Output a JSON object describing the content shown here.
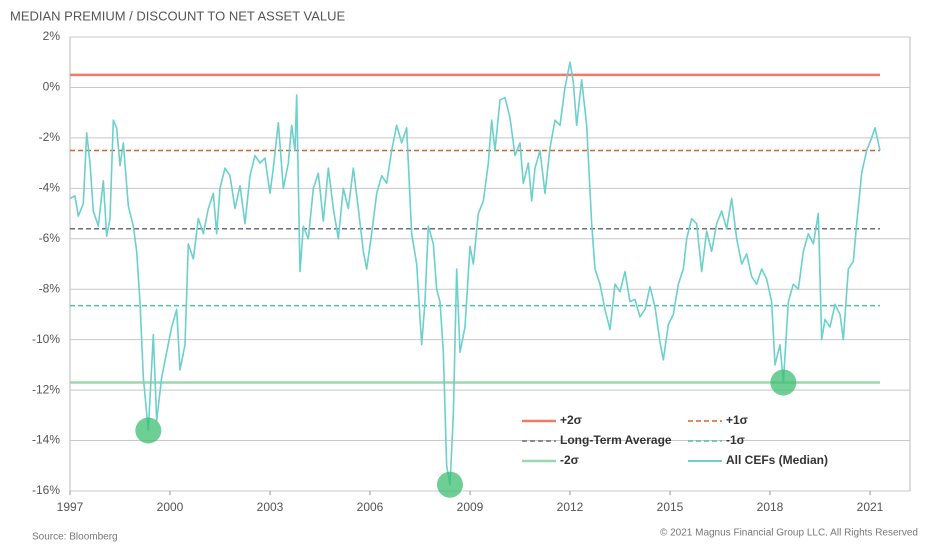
{
  "chart_data": {
    "type": "line",
    "title": "MEDIAN PREMIUM / DISCOUNT TO NET ASSET VALUE",
    "source": "Source: Bloomberg",
    "copyright": "© 2021 Magnus Financial Group LLC. All Rights Reserved",
    "xlim": [
      1997,
      2022.2
    ],
    "xticks": [
      1997,
      2000,
      2003,
      2006,
      2009,
      2012,
      2015,
      2018,
      2021
    ],
    "ylim": [
      -16,
      2
    ],
    "yticks": [
      {
        "value": 2,
        "label": "2%"
      },
      {
        "value": 0,
        "label": "0%"
      },
      {
        "value": -2,
        "label": "-2%"
      },
      {
        "value": -4,
        "label": "-4%"
      },
      {
        "value": -6,
        "label": "-6%"
      },
      {
        "value": -8,
        "label": "-8%"
      },
      {
        "value": -10,
        "label": "-10%"
      },
      {
        "value": -12,
        "label": "-12%"
      },
      {
        "value": -14,
        "label": "-14%"
      },
      {
        "value": -16,
        "label": "-16%"
      }
    ],
    "grid": true,
    "x": [
      1997.0,
      1997.15,
      1997.25,
      1997.4,
      1997.5,
      1997.6,
      1997.7,
      1997.85,
      1998.0,
      1998.1,
      1998.2,
      1998.3,
      1998.4,
      1998.5,
      1998.6,
      1998.75,
      1998.9,
      1999.0,
      1999.1,
      1999.2,
      1999.35,
      1999.5,
      1999.6,
      1999.75,
      1999.9,
      2000.05,
      2000.2,
      2000.3,
      2000.45,
      2000.55,
      2000.7,
      2000.85,
      2001.0,
      2001.15,
      2001.3,
      2001.4,
      2001.5,
      2001.65,
      2001.8,
      2001.95,
      2002.1,
      2002.25,
      2002.4,
      2002.55,
      2002.7,
      2002.85,
      2003.0,
      2003.1,
      2003.25,
      2003.4,
      2003.55,
      2003.65,
      2003.75,
      2003.8,
      2003.9,
      2004.0,
      2004.15,
      2004.3,
      2004.45,
      2004.6,
      2004.75,
      2004.9,
      2005.05,
      2005.2,
      2005.35,
      2005.5,
      2005.65,
      2005.8,
      2005.9,
      2006.05,
      2006.2,
      2006.35,
      2006.5,
      2006.65,
      2006.8,
      2006.95,
      2007.1,
      2007.25,
      2007.4,
      2007.55,
      2007.65,
      2007.75,
      2007.9,
      2008.0,
      2008.1,
      2008.2,
      2008.3,
      2008.4,
      2008.5,
      2008.6,
      2008.7,
      2008.85,
      2009.0,
      2009.1,
      2009.25,
      2009.4,
      2009.55,
      2009.65,
      2009.75,
      2009.9,
      2010.05,
      2010.2,
      2010.35,
      2010.5,
      2010.6,
      2010.75,
      2010.85,
      2010.95,
      2011.1,
      2011.25,
      2011.4,
      2011.55,
      2011.7,
      2011.85,
      2012.0,
      2012.1,
      2012.2,
      2012.35,
      2012.5,
      2012.65,
      2012.75,
      2012.9,
      2013.05,
      2013.2,
      2013.35,
      2013.5,
      2013.65,
      2013.8,
      2013.95,
      2014.1,
      2014.25,
      2014.4,
      2014.55,
      2014.7,
      2014.8,
      2014.95,
      2015.1,
      2015.25,
      2015.4,
      2015.5,
      2015.65,
      2015.8,
      2015.95,
      2016.1,
      2016.25,
      2016.4,
      2016.55,
      2016.7,
      2016.85,
      2017.0,
      2017.15,
      2017.3,
      2017.45,
      2017.6,
      2017.75,
      2017.9,
      2018.05,
      2018.15,
      2018.3,
      2018.4,
      2018.55,
      2018.7,
      2018.85,
      2019.0,
      2019.15,
      2019.3,
      2019.45,
      2019.55,
      2019.65,
      2019.8,
      2019.95,
      2020.1,
      2020.2,
      2020.35,
      2020.5,
      2020.6,
      2020.75,
      2020.9,
      2021.05,
      2021.15,
      2021.3
    ],
    "series": [
      {
        "name": "All CEFs (Median)",
        "color": "#6cd0cc",
        "values": [
          -4.4,
          -4.3,
          -5.1,
          -4.6,
          -1.8,
          -3.0,
          -4.9,
          -5.5,
          -3.7,
          -5.9,
          -5.2,
          -1.3,
          -1.6,
          -3.1,
          -2.2,
          -4.7,
          -5.5,
          -6.5,
          -8.5,
          -11.5,
          -13.6,
          -9.8,
          -13.2,
          -11.5,
          -10.5,
          -9.5,
          -8.8,
          -11.2,
          -10.2,
          -6.2,
          -6.8,
          -5.2,
          -5.8,
          -4.8,
          -4.2,
          -5.8,
          -4.0,
          -3.2,
          -3.5,
          -4.8,
          -3.9,
          -5.4,
          -3.5,
          -2.7,
          -3.0,
          -2.8,
          -4.2,
          -3.2,
          -1.4,
          -4.0,
          -3.0,
          -1.5,
          -2.5,
          -0.3,
          -7.3,
          -5.5,
          -6.0,
          -4.0,
          -3.4,
          -5.3,
          -3.2,
          -4.8,
          -6.0,
          -4.0,
          -4.8,
          -3.2,
          -4.8,
          -6.5,
          -7.2,
          -5.8,
          -4.2,
          -3.5,
          -3.8,
          -2.5,
          -1.5,
          -2.2,
          -1.6,
          -5.8,
          -7.0,
          -10.2,
          -8.5,
          -5.5,
          -6.2,
          -8.0,
          -8.5,
          -10.5,
          -15.0,
          -15.75,
          -13.0,
          -7.2,
          -10.5,
          -9.5,
          -6.3,
          -7.0,
          -5.0,
          -4.5,
          -3.0,
          -1.3,
          -2.5,
          -0.5,
          -0.4,
          -1.2,
          -2.7,
          -2.2,
          -3.8,
          -3.0,
          -4.5,
          -3.2,
          -2.5,
          -4.2,
          -2.4,
          -1.3,
          -1.5,
          0.0,
          1.0,
          0.2,
          -1.5,
          0.3,
          -1.5,
          -5.4,
          -7.2,
          -7.8,
          -8.8,
          -9.6,
          -7.8,
          -8.1,
          -7.3,
          -8.5,
          -8.4,
          -9.1,
          -8.8,
          -7.9,
          -8.7,
          -10.1,
          -10.8,
          -9.4,
          -9.0,
          -7.8,
          -7.2,
          -6.0,
          -5.2,
          -5.4,
          -7.3,
          -5.7,
          -6.5,
          -5.4,
          -4.9,
          -5.6,
          -4.4,
          -6.0,
          -7.0,
          -6.6,
          -7.5,
          -7.8,
          -7.2,
          -7.6,
          -8.5,
          -11.0,
          -10.2,
          -11.7,
          -8.5,
          -7.8,
          -8.0,
          -6.5,
          -5.8,
          -6.2,
          -5.0,
          -10.0,
          -9.2,
          -9.5,
          -8.6,
          -9.0,
          -10.0,
          -7.2,
          -6.9,
          -5.4,
          -3.4,
          -2.5,
          -2.0,
          -1.6,
          -2.5
        ]
      }
    ],
    "reference_lines": [
      {
        "name": "+2σ",
        "value": 0.5,
        "color": "#f07a68",
        "dashed": false
      },
      {
        "name": "+1σ",
        "value": -2.5,
        "color": "#d4622c",
        "dashed": true
      },
      {
        "name": "Long-Term Average",
        "value": -5.6,
        "color": "#6b6d86",
        "dashed": true
      },
      {
        "name": "-1σ",
        "value": -8.65,
        "color": "#54bfa8",
        "dashed": true
      },
      {
        "name": "-2σ",
        "value": -11.7,
        "color": "#9ad9a9",
        "dashed": false
      }
    ],
    "highlights": {
      "color": "#3dbf72",
      "x": [
        1999.35,
        2008.4,
        2018.4
      ],
      "values": [
        -13.6,
        -15.75,
        -11.7
      ]
    }
  }
}
